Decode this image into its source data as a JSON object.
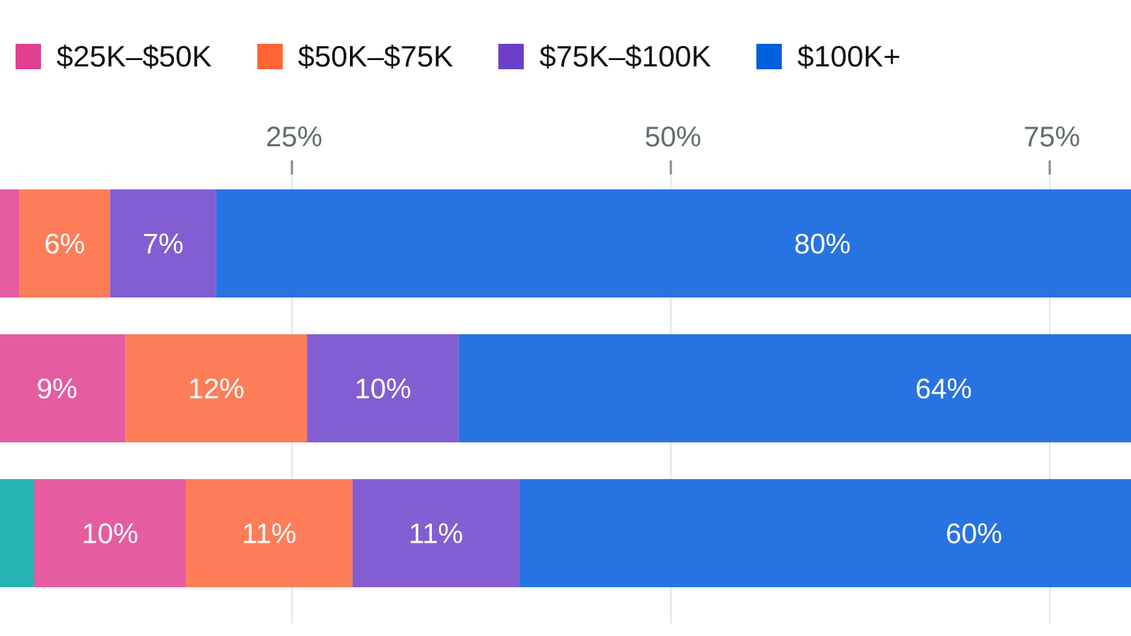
{
  "chart_data": {
    "type": "bar",
    "orientation": "horizontal",
    "stacked": true,
    "xlim": [
      0,
      100
    ],
    "x_ticks": [
      "25%",
      "50%",
      "75%"
    ],
    "x_tick_values": [
      25,
      50,
      75
    ],
    "grid": true,
    "legend_position": "top-left",
    "series": [
      {
        "name": "",
        "color": "#1CB0AE",
        "values": [
          3,
          5,
          8
        ],
        "labels": [
          "",
          "",
          ""
        ]
      },
      {
        "name": "$25K–$50K",
        "color": "#E0408E",
        "values": [
          4,
          9,
          10
        ],
        "labels": [
          "",
          "9%",
          "10%"
        ]
      },
      {
        "name": "$50K–$75K",
        "color": "#FF6634",
        "values": [
          6,
          12,
          11
        ],
        "labels": [
          "6%",
          "12%",
          "11%"
        ]
      },
      {
        "name": "$75K–$100K",
        "color": "#6C3FC9",
        "values": [
          7,
          10,
          11
        ],
        "labels": [
          "7%",
          "10%",
          "11%"
        ]
      },
      {
        "name": "$100K+",
        "color": "#005FDC",
        "values": [
          80,
          64,
          60
        ],
        "labels": [
          "80%",
          "64%",
          "60%"
        ]
      }
    ],
    "bar_colors": [
      "#1CB0AE",
      "#E4539B",
      "#FD7650",
      "#7B55D0",
      "#1C6BE0"
    ]
  }
}
